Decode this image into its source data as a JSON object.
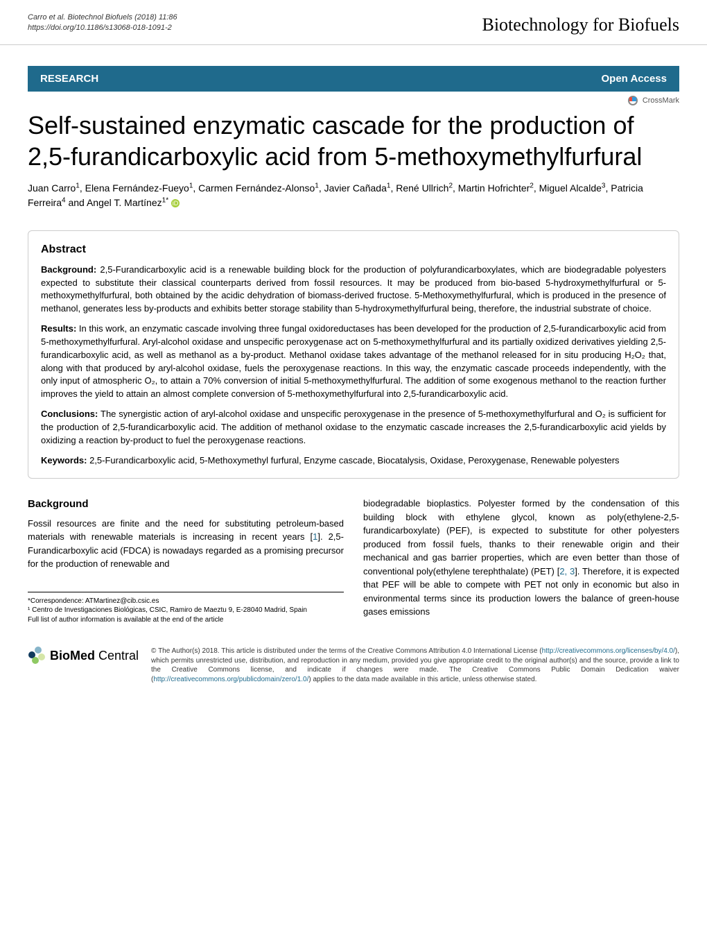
{
  "header": {
    "citation_line1": "Carro et al. Biotechnol Biofuels (2018) 11:86",
    "citation_line2": "https://doi.org/10.1186/s13068-018-1091-2",
    "journal": "Biotechnology for Biofuels"
  },
  "research_bar": {
    "label": "RESEARCH",
    "open_access": "Open Access"
  },
  "crossmark": "CrossMark",
  "title": "Self-sustained enzymatic cascade for the production of 2,5-furandicarboxylic acid from 5-methoxymethylfurfural",
  "authors_html": "Juan Carro<sup>1</sup>, Elena Fernández-Fueyo<sup>1</sup>, Carmen Fernández-Alonso<sup>1</sup>, Javier Cañada<sup>1</sup>, René Ullrich<sup>2</sup>, Martin Hofrichter<sup>2</sup>, Miguel Alcalde<sup>3</sup>, Patricia Ferreira<sup>4</sup> and Angel T. Martínez<sup>1*</sup>",
  "abstract": {
    "heading": "Abstract",
    "background_label": "Background:",
    "background_text": " 2,5-Furandicarboxylic acid is a renewable building block for the production of polyfurandicarboxylates, which are biodegradable polyesters expected to substitute their classical counterparts derived from fossil resources. It may be produced from bio-based 5-hydroxymethylfurfural or 5-methoxymethylfurfural, both obtained by the acidic dehydration of biomass-derived fructose. 5-Methoxymethylfurfural, which is produced in the presence of methanol, generates less by-products and exhibits better storage stability than 5-hydroxymethylfurfural being, therefore, the industrial substrate of choice.",
    "results_label": "Results:",
    "results_text": " In this work, an enzymatic cascade involving three fungal oxidoreductases has been developed for the production of 2,5-furandicarboxylic acid from 5-methoxymethylfurfural. Aryl-alcohol oxidase and unspecific peroxygenase act on 5-methoxymethylfurfural and its partially oxidized derivatives yielding 2,5-furandicarboxylic acid, as well as methanol as a by-product. Methanol oxidase takes advantage of the methanol released for in situ producing H₂O₂ that, along with that produced by aryl-alcohol oxidase, fuels the peroxygenase reactions. In this way, the enzymatic cascade proceeds independently, with the only input of atmospheric O₂, to attain a 70% conversion of initial 5-methoxymethylfurfural. The addition of some exogenous methanol to the reaction further improves the yield to attain an almost complete conversion of 5-methoxymethylfurfural into 2,5-furandicarboxylic acid.",
    "conclusions_label": "Conclusions:",
    "conclusions_text": " The synergistic action of aryl-alcohol oxidase and unspecific peroxygenase in the presence of 5-methoxymethylfurfural and O₂ is sufficient for the production of 2,5-furandicarboxylic acid. The addition of methanol oxidase to the enzymatic cascade increases the 2,5-furandicarboxylic acid yields by oxidizing a reaction by-product to fuel the peroxygenase reactions.",
    "keywords_label": "Keywords:",
    "keywords_text": " 2,5-Furandicarboxylic acid, 5-Methoxymethyl furfural, Enzyme cascade, Biocatalysis, Oxidase, Peroxygenase, Renewable polyesters"
  },
  "body": {
    "background_heading": "Background",
    "left_col": "Fossil resources are finite and the need for substituting petroleum-based materials with renewable materials is increasing in recent years [1]. 2,5-Furandicarboxylic acid (FDCA) is nowadays regarded as a promising precursor for the production of renewable and",
    "right_col": "biodegradable bioplastics. Polyester formed by the condensation of this building block with ethylene glycol, known as poly(ethylene-2,5-furandicarboxylate) (PEF), is expected to substitute for other polyesters produced from fossil fuels, thanks to their renewable origin and their mechanical and gas barrier properties, which are even better than those of conventional poly(ethylene terephthalate) (PET) [2, 3]. Therefore, it is expected that PEF will be able to compete with PET not only in economic but also in environmental terms since its production lowers the balance of green-house gases emissions"
  },
  "footnote": {
    "correspondence": "*Correspondence: ATMartinez@cib.csic.es",
    "affiliation": "¹ Centro de Investigaciones Biológicas, CSIC, Ramiro de Maeztu 9, E-28040 Madrid, Spain",
    "full_list": "Full list of author information is available at the end of the article"
  },
  "footer": {
    "logo_text": "BioMed Central",
    "license": "© The Author(s) 2018. This article is distributed under the terms of the Creative Commons Attribution 4.0 International License (http://creativecommons.org/licenses/by/4.0/), which permits unrestricted use, distribution, and reproduction in any medium, provided you give appropriate credit to the original author(s) and the source, provide a link to the Creative Commons license, and indicate if changes were made. The Creative Commons Public Domain Dedication waiver (http://creativecommons.org/publicdomain/zero/1.0/) applies to the data made available in this article, unless otherwise stated."
  },
  "colors": {
    "primary": "#1f6a8c",
    "text": "#000000",
    "border": "#cccccc",
    "link": "#1f6a8c",
    "orcid": "#a6ce39"
  }
}
